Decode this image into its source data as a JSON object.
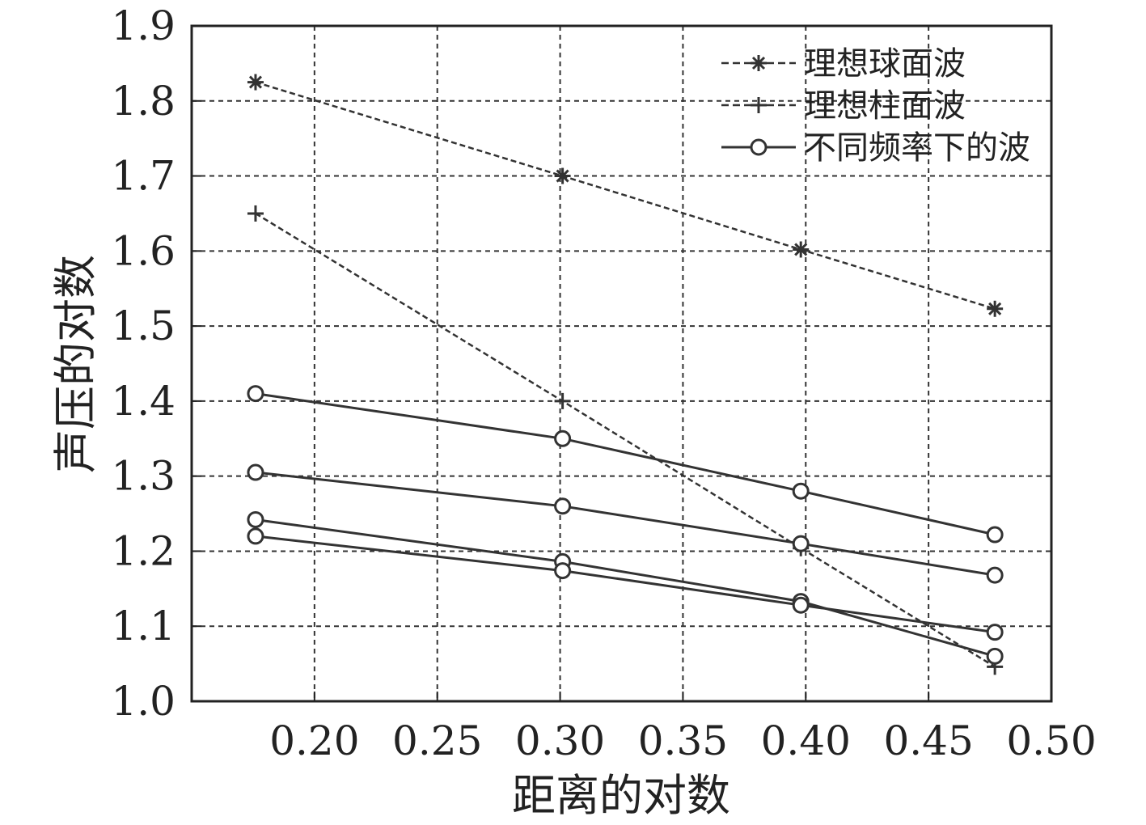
{
  "chart_data": {
    "type": "line",
    "xlabel": "距离的对数",
    "ylabel": "声压的对数",
    "xlim": [
      0.15,
      0.5
    ],
    "ylim": [
      1.0,
      1.9
    ],
    "xticks": [
      0.2,
      0.25,
      0.3,
      0.35,
      0.4,
      0.45,
      0.5
    ],
    "xtick_labels": [
      "0.20",
      "0.25",
      "0.30",
      "0.35",
      "0.40",
      "0.45",
      "0.50"
    ],
    "yticks": [
      1.0,
      1.1,
      1.2,
      1.3,
      1.4,
      1.5,
      1.6,
      1.7,
      1.8,
      1.9
    ],
    "ytick_labels": [
      "1.0",
      "1.1",
      "1.2",
      "1.3",
      "1.4",
      "1.5",
      "1.6",
      "1.7",
      "1.8",
      "1.9"
    ],
    "grid": true,
    "legend_position": "top-right",
    "x": [
      0.176,
      0.301,
      0.398,
      0.477
    ],
    "series": [
      {
        "name": "理想球面波",
        "values": [
          1.825,
          1.7,
          1.602,
          1.523
        ],
        "style": "dashed",
        "marker": "star",
        "color": "#333333"
      },
      {
        "name": "理想柱面波",
        "values": [
          1.65,
          1.4,
          1.204,
          1.046
        ],
        "style": "dashed",
        "marker": "plus",
        "color": "#333333"
      },
      {
        "name": "不同频率下的波",
        "values": [
          1.41,
          1.35,
          1.28,
          1.222
        ],
        "style": "solid",
        "marker": "circle",
        "color": "#333333"
      },
      {
        "values": [
          1.305,
          1.26,
          1.21,
          1.168
        ],
        "style": "solid",
        "marker": "circle",
        "color": "#333333"
      },
      {
        "values": [
          1.242,
          1.186,
          1.133,
          1.06
        ],
        "style": "solid",
        "marker": "circle",
        "color": "#333333"
      },
      {
        "values": [
          1.22,
          1.174,
          1.128,
          1.092
        ],
        "style": "solid",
        "marker": "circle",
        "color": "#333333"
      }
    ]
  }
}
